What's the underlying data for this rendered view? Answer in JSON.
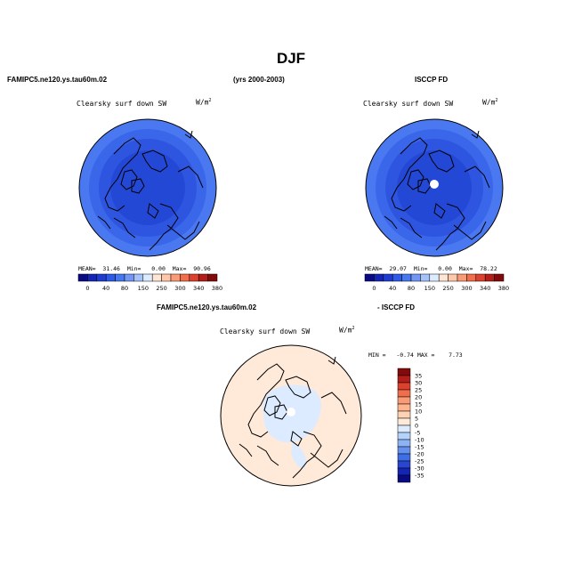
{
  "title": "DJF",
  "left_model": "FAMIPC5.ne120.ys.tau60m.02",
  "years": "(yrs 2000-2003)",
  "right_obs": "ISCCP FD",
  "diff_model": "FAMIPC5.ne120.ys.tau60m.02",
  "diff_obs": "- ISCCP FD",
  "panels": [
    {
      "variable": "Clearsky surf down SW",
      "units": "W/m",
      "units_sup": "2",
      "stats": {
        "mean_label": "MEAN=",
        "mean": "31.46",
        "min_label": "Min=",
        "min": "0.00",
        "max_label": "Max=",
        "max": "90.96"
      }
    },
    {
      "variable": "Clearsky surf down SW",
      "units": "W/m",
      "units_sup": "2",
      "stats": {
        "mean_label": "MEAN=",
        "mean": "29.07",
        "min_label": "Min=",
        "min": "0.00",
        "max_label": "Max=",
        "max": "78.22"
      }
    },
    {
      "variable": "Clearsky surf down SW",
      "units": "W/m",
      "units_sup": "2",
      "stats": {
        "min_label": "MIN =",
        "min": "-0.74",
        "max_label": "MAX =",
        "max": "7.73"
      }
    }
  ],
  "colorbar_main": {
    "labels": [
      "0",
      "40",
      "80",
      "150",
      "250",
      "300",
      "340",
      "380"
    ],
    "colors": [
      "#0a0a82",
      "#1424b4",
      "#1e3cd2",
      "#2d5ae6",
      "#4678f0",
      "#7396f5",
      "#a5c3fa",
      "#dcebff",
      "#ffe6d2",
      "#ffc8aa",
      "#fa9b78",
      "#f06e4b",
      "#dc412d",
      "#b41e19",
      "#820a0a"
    ]
  },
  "colorbar_diff": {
    "labels": [
      "35",
      "30",
      "25",
      "20",
      "15",
      "10",
      "5",
      "0",
      "-5",
      "-10",
      "-15",
      "-20",
      "-25",
      "-30",
      "-35"
    ],
    "colors": [
      "#820a0a",
      "#b41e19",
      "#dc412d",
      "#f06e4b",
      "#fa9b78",
      "#ffb48c",
      "#ffd2b4",
      "#ffe9d8",
      "#dcebff",
      "#b4d2fa",
      "#8cb4f5",
      "#6491f0",
      "#3c6ee6",
      "#2846d2",
      "#1424b4",
      "#0a0a82"
    ]
  },
  "map_colors": {
    "outer": "#4a78f0",
    "ring2": "#3a66ea",
    "ring3": "#2d55e0",
    "inner": "#2448d6",
    "diff_bg": "#ffe9d8",
    "diff_blue": "#dcebff"
  }
}
